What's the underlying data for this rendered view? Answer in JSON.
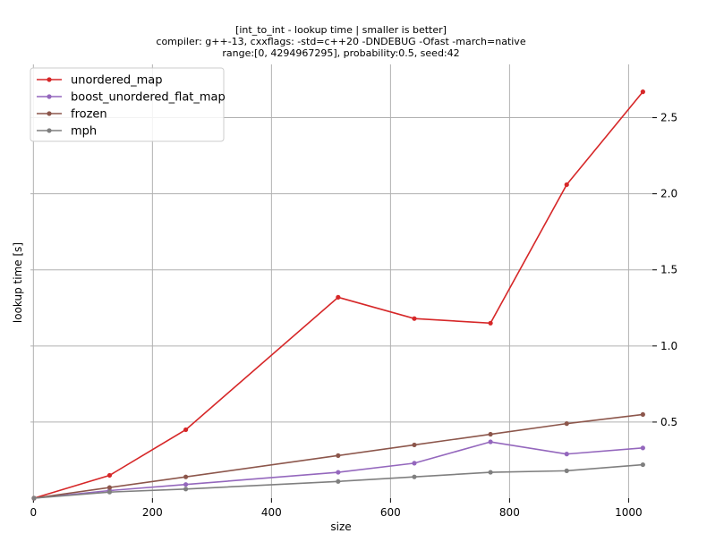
{
  "chart_data": {
    "type": "line",
    "title": "[int_to_int - lookup time | smaller is better]",
    "subtitle_lines": [
      "compiler: g++-13, cxxflags: -std=c++20 -DNDEBUG -Ofast -march=native",
      "range:[0, 4294967295], probability:0.5, seed:42"
    ],
    "xlabel": "size",
    "ylabel": "lookup time [s]",
    "xlim": [
      -5,
      1040
    ],
    "ylim": [
      0,
      2.85
    ],
    "x_ticks": [
      0,
      200,
      400,
      600,
      800,
      1000
    ],
    "x_tick_labels": [
      "0",
      "200",
      "400",
      "600",
      "800",
      "1000"
    ],
    "y_ticks": [
      0.5,
      1.0,
      1.5,
      2.0,
      2.5
    ],
    "y_tick_labels": [
      "0.5",
      "1.0",
      "1.5",
      "2.0",
      "2.5"
    ],
    "y_axis_side": "right",
    "grid": true,
    "legend_position": "top-left",
    "x": [
      1,
      128,
      256,
      512,
      640,
      768,
      896,
      1024
    ],
    "series": [
      {
        "name": "unordered_map",
        "color": "#d62728",
        "values": [
          0.0,
          0.15,
          0.45,
          1.32,
          1.18,
          1.15,
          2.06,
          2.67
        ]
      },
      {
        "name": "boost_unordered_flat_map",
        "color": "#9467bd",
        "values": [
          0.0,
          0.05,
          0.09,
          0.17,
          0.23,
          0.37,
          0.29,
          0.33
        ]
      },
      {
        "name": "frozen",
        "color": "#8c564b",
        "values": [
          0.0,
          0.07,
          0.14,
          0.28,
          0.35,
          0.42,
          0.49,
          0.55
        ]
      },
      {
        "name": "mph",
        "color": "#7f7f7f",
        "values": [
          0.0,
          0.04,
          0.06,
          0.11,
          0.14,
          0.17,
          0.18,
          0.22
        ]
      }
    ]
  }
}
